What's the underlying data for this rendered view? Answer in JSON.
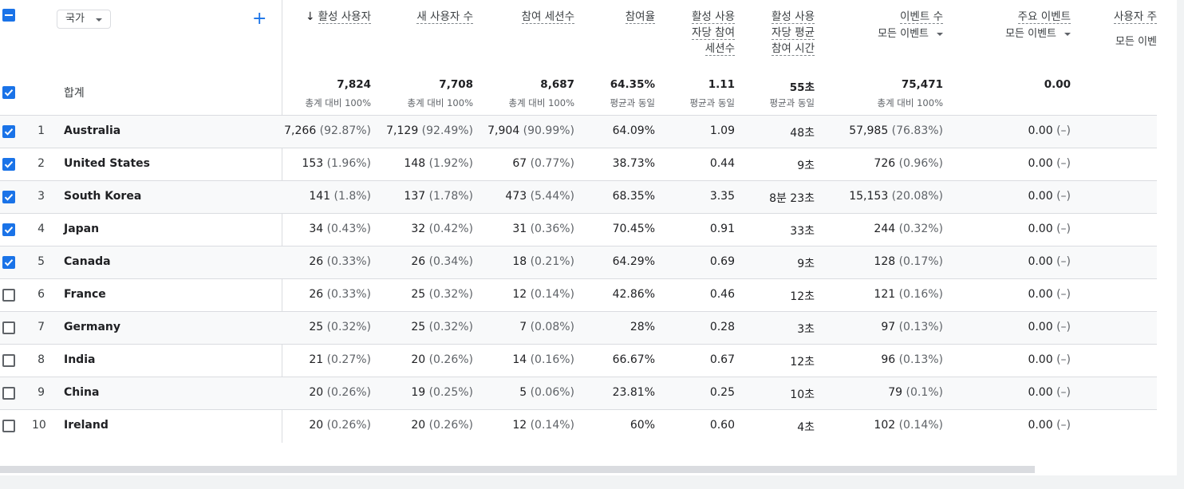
{
  "dimension_chip": {
    "label": "국가"
  },
  "add_dimension": {
    "label": "+"
  },
  "headers": [
    {
      "lines": [
        "활성 사용자"
      ],
      "sorted": true,
      "sort_arrow": "↓"
    },
    {
      "lines": [
        "새 사용자 수"
      ]
    },
    {
      "lines": [
        "참여 세션수"
      ]
    },
    {
      "lines": [
        "참여율"
      ]
    },
    {
      "lines": [
        "활성 사용",
        "자당 참여",
        "세션수"
      ]
    },
    {
      "lines": [
        "활성 사용",
        "자당 평균",
        "참여 시간"
      ]
    },
    {
      "lines": [
        "이벤트 수"
      ],
      "selector": "모든 이벤트"
    },
    {
      "lines": [
        "주요 이벤트"
      ],
      "selector": "모든 이벤트"
    },
    {
      "lines": [
        "사용자 주"
      ],
      "selector": "모든 이벤"
    }
  ],
  "totals": {
    "label": "합계",
    "values": [
      "7,824",
      "7,708",
      "8,687",
      "64.35%",
      "1.11",
      "55초",
      "75,471",
      "0.00"
    ],
    "subs": [
      "총계 대비 100%",
      "총계 대비 100%",
      "총계 대비 100%",
      "평균과 동일",
      "평균과 동일",
      "평균과 동일",
      "총계 대비 100%",
      ""
    ]
  },
  "rows": [
    {
      "rank": "1",
      "country": "Australia",
      "checked": true,
      "active": "7,266",
      "active_pct": "(92.87%)",
      "new": "7,129",
      "new_pct": "(92.49%)",
      "sessions": "7,904",
      "sessions_pct": "(90.99%)",
      "rate": "64.09%",
      "per_user": "1.09",
      "time": "48초",
      "events": "57,985",
      "events_pct": "(76.83%)",
      "key": "0.00",
      "key_pct": "(–)"
    },
    {
      "rank": "2",
      "country": "United States",
      "checked": true,
      "active": "153",
      "active_pct": "(1.96%)",
      "new": "148",
      "new_pct": "(1.92%)",
      "sessions": "67",
      "sessions_pct": "(0.77%)",
      "rate": "38.73%",
      "per_user": "0.44",
      "time": "9초",
      "events": "726",
      "events_pct": "(0.96%)",
      "key": "0.00",
      "key_pct": "(–)"
    },
    {
      "rank": "3",
      "country": "South Korea",
      "checked": true,
      "active": "141",
      "active_pct": "(1.8%)",
      "new": "137",
      "new_pct": "(1.78%)",
      "sessions": "473",
      "sessions_pct": "(5.44%)",
      "rate": "68.35%",
      "per_user": "3.35",
      "time": "8분 23초",
      "events": "15,153",
      "events_pct": "(20.08%)",
      "key": "0.00",
      "key_pct": "(–)"
    },
    {
      "rank": "4",
      "country": "Japan",
      "checked": true,
      "active": "34",
      "active_pct": "(0.43%)",
      "new": "32",
      "new_pct": "(0.42%)",
      "sessions": "31",
      "sessions_pct": "(0.36%)",
      "rate": "70.45%",
      "per_user": "0.91",
      "time": "33초",
      "events": "244",
      "events_pct": "(0.32%)",
      "key": "0.00",
      "key_pct": "(–)"
    },
    {
      "rank": "5",
      "country": "Canada",
      "checked": true,
      "active": "26",
      "active_pct": "(0.33%)",
      "new": "26",
      "new_pct": "(0.34%)",
      "sessions": "18",
      "sessions_pct": "(0.21%)",
      "rate": "64.29%",
      "per_user": "0.69",
      "time": "9초",
      "events": "128",
      "events_pct": "(0.17%)",
      "key": "0.00",
      "key_pct": "(–)"
    },
    {
      "rank": "6",
      "country": "France",
      "checked": false,
      "active": "26",
      "active_pct": "(0.33%)",
      "new": "25",
      "new_pct": "(0.32%)",
      "sessions": "12",
      "sessions_pct": "(0.14%)",
      "rate": "42.86%",
      "per_user": "0.46",
      "time": "12초",
      "events": "121",
      "events_pct": "(0.16%)",
      "key": "0.00",
      "key_pct": "(–)"
    },
    {
      "rank": "7",
      "country": "Germany",
      "checked": false,
      "active": "25",
      "active_pct": "(0.32%)",
      "new": "25",
      "new_pct": "(0.32%)",
      "sessions": "7",
      "sessions_pct": "(0.08%)",
      "rate": "28%",
      "per_user": "0.28",
      "time": "3초",
      "events": "97",
      "events_pct": "(0.13%)",
      "key": "0.00",
      "key_pct": "(–)"
    },
    {
      "rank": "8",
      "country": "India",
      "checked": false,
      "active": "21",
      "active_pct": "(0.27%)",
      "new": "20",
      "new_pct": "(0.26%)",
      "sessions": "14",
      "sessions_pct": "(0.16%)",
      "rate": "66.67%",
      "per_user": "0.67",
      "time": "12초",
      "events": "96",
      "events_pct": "(0.13%)",
      "key": "0.00",
      "key_pct": "(–)"
    },
    {
      "rank": "9",
      "country": "China",
      "checked": false,
      "active": "20",
      "active_pct": "(0.26%)",
      "new": "19",
      "new_pct": "(0.25%)",
      "sessions": "5",
      "sessions_pct": "(0.06%)",
      "rate": "23.81%",
      "per_user": "0.25",
      "time": "10초",
      "events": "79",
      "events_pct": "(0.1%)",
      "key": "0.00",
      "key_pct": "(–)"
    },
    {
      "rank": "10",
      "country": "Ireland",
      "checked": false,
      "active": "20",
      "active_pct": "(0.26%)",
      "new": "20",
      "new_pct": "(0.26%)",
      "sessions": "12",
      "sessions_pct": "(0.14%)",
      "rate": "60%",
      "per_user": "0.60",
      "time": "4초",
      "events": "102",
      "events_pct": "(0.14%)",
      "key": "0.00",
      "key_pct": "(–)"
    }
  ]
}
